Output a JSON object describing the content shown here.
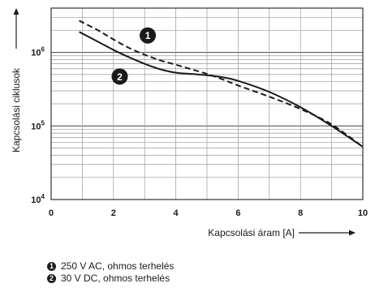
{
  "chart_data": {
    "type": "line",
    "xlabel": "Kapcsolási áram [A]",
    "ylabel": "Kapcsolási ciklusok",
    "xlim": [
      0,
      10
    ],
    "ylim": [
      10000,
      4000000
    ],
    "yscale": "log",
    "grid": true,
    "x_ticks": [
      "0",
      "2",
      "4",
      "6",
      "8",
      "10"
    ],
    "x_tick_values": [
      0,
      2,
      4,
      6,
      8,
      10
    ],
    "y_ticks": [
      {
        "base": "10",
        "exp": "4",
        "value": 10000
      },
      {
        "base": "10",
        "exp": "5",
        "value": 100000
      },
      {
        "base": "10",
        "exp": "6",
        "value": 1000000
      }
    ],
    "series": [
      {
        "marker_label": "1",
        "style": "dashed",
        "color": "#1a1a1a",
        "x": [
          0.9,
          1.5,
          2.0,
          2.5,
          3.0,
          3.5,
          4.0,
          4.5,
          5.0,
          5.5,
          6.0,
          7.0,
          8.0,
          9.0,
          10.0
        ],
        "y": [
          2700000,
          2000000,
          1500000,
          1150000,
          930000,
          780000,
          680000,
          590000,
          510000,
          430000,
          355000,
          250000,
          170000,
          105000,
          52000
        ]
      },
      {
        "marker_label": "2",
        "style": "solid",
        "color": "#1a1a1a",
        "x": [
          0.9,
          1.5,
          2.0,
          2.5,
          3.0,
          3.5,
          4.0,
          4.5,
          5.0,
          5.5,
          6.0,
          7.0,
          8.0,
          9.0,
          10.0
        ],
        "y": [
          1900000,
          1400000,
          1080000,
          860000,
          700000,
          590000,
          530000,
          510000,
          490000,
          460000,
          410000,
          290000,
          180000,
          100000,
          52000
        ]
      }
    ],
    "markers": [
      {
        "label": "1",
        "x": 3.1,
        "y": 1700000
      },
      {
        "label": "2",
        "x": 2.2,
        "y": 470000
      }
    ],
    "legend": [
      {
        "badge": "1",
        "text": "250 V AC, ohmos terhelés"
      },
      {
        "badge": "2",
        "text": "30 V DC, ohmos terhelés"
      }
    ]
  }
}
